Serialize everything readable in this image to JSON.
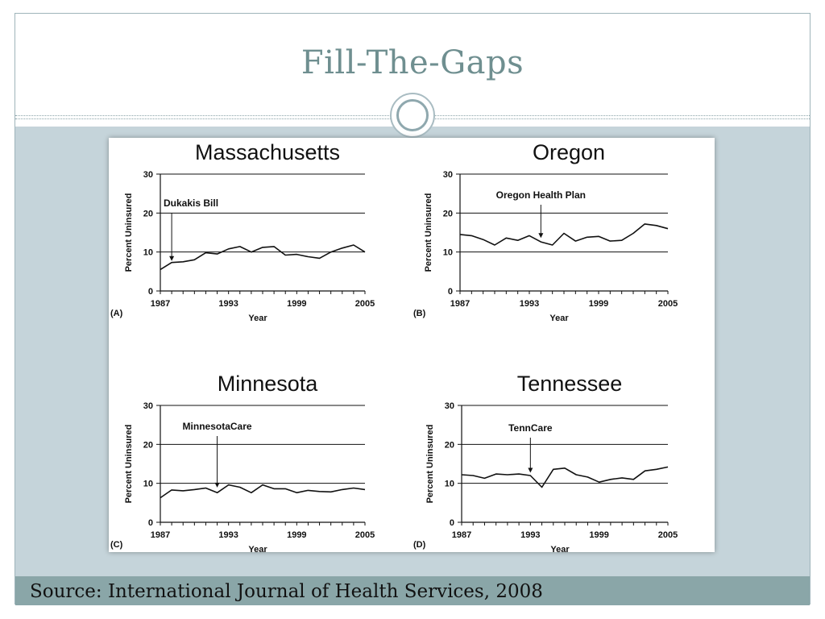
{
  "slide": {
    "title": "Fill-The-Gaps",
    "source": "Source: International Journal of Health Services, 2008"
  },
  "chart_data": [
    {
      "type": "line",
      "title": "Massachusetts",
      "panel_label": "(A)",
      "xlabel": "Year",
      "ylabel": "Percent Uninsured",
      "xlim": [
        1987,
        2005
      ],
      "ylim": [
        0,
        30
      ],
      "xticks": [
        "1987",
        "1993",
        "1999",
        "2005"
      ],
      "yticks": [
        "0",
        "10",
        "20",
        "30"
      ],
      "grid": "horizontal at 10 and 20",
      "annotation": {
        "text": "Dukakis Bill",
        "x": 1988,
        "y": 7.3
      },
      "x": [
        1987,
        1988,
        1989,
        1990,
        1991,
        1992,
        1993,
        1994,
        1995,
        1996,
        1997,
        1998,
        1999,
        2000,
        2001,
        2002,
        2003,
        2004,
        2005
      ],
      "y": [
        5.5,
        7.3,
        7.5,
        8.0,
        9.8,
        9.5,
        10.8,
        11.4,
        10.0,
        11.2,
        11.4,
        9.2,
        9.4,
        8.8,
        8.4,
        10.0,
        11.0,
        11.8,
        10.0
      ]
    },
    {
      "type": "line",
      "title": "Oregon",
      "panel_label": "(B)",
      "xlabel": "Year",
      "ylabel": "Percent Uninsured",
      "xlim": [
        1987,
        2005
      ],
      "ylim": [
        0,
        30
      ],
      "xticks": [
        "1987",
        "1993",
        "1999",
        "2005"
      ],
      "yticks": [
        "0",
        "10",
        "20",
        "30"
      ],
      "grid": "horizontal at 10 and 20",
      "annotation": {
        "text": "Oregon Health Plan",
        "x": 1994,
        "y": 13.2
      },
      "x": [
        1987,
        1988,
        1989,
        1990,
        1991,
        1992,
        1993,
        1994,
        1995,
        1996,
        1997,
        1998,
        1999,
        2000,
        2001,
        2002,
        2003,
        2004,
        2005
      ],
      "y": [
        14.5,
        14.2,
        13.2,
        11.8,
        13.6,
        13.0,
        14.2,
        12.6,
        11.8,
        14.8,
        12.8,
        13.8,
        14.0,
        12.8,
        13.0,
        14.8,
        17.2,
        16.8,
        16.0
      ]
    },
    {
      "type": "line",
      "title": "Minnesota",
      "panel_label": "(C)",
      "xlabel": "Year",
      "ylabel": "Percent Uninsured",
      "xlim": [
        1987,
        2005
      ],
      "ylim": [
        0,
        30
      ],
      "xticks": [
        "1987",
        "1993",
        "1999",
        "2005"
      ],
      "yticks": [
        "0",
        "10",
        "20",
        "30"
      ],
      "grid": "horizontal at 10 and 20",
      "annotation": {
        "text": "MinnesotaCare",
        "x": 1992,
        "y": 8.5
      },
      "x": [
        1987,
        1988,
        1989,
        1990,
        1991,
        1992,
        1993,
        1994,
        1995,
        1996,
        1997,
        1998,
        1999,
        2000,
        2001,
        2002,
        2003,
        2004,
        2005
      ],
      "y": [
        6.3,
        8.3,
        8.1,
        8.4,
        8.8,
        7.6,
        9.6,
        9.0,
        7.6,
        9.6,
        8.6,
        8.6,
        7.6,
        8.2,
        7.9,
        7.8,
        8.4,
        8.8,
        8.4
      ]
    },
    {
      "type": "line",
      "title": "Tennessee",
      "panel_label": "(D)",
      "xlabel": "Year",
      "ylabel": "Percent Uninsured",
      "xlim": [
        1987,
        2005
      ],
      "ylim": [
        0,
        30
      ],
      "xticks": [
        "1987",
        "1993",
        "1999",
        "2005"
      ],
      "yticks": [
        "0",
        "10",
        "20",
        "30"
      ],
      "grid": "horizontal at 10 and 20",
      "annotation": {
        "text": "TennCare",
        "x": 1993,
        "y": 12.3
      },
      "x": [
        1987,
        1988,
        1989,
        1990,
        1991,
        1992,
        1993,
        1994,
        1995,
        1996,
        1997,
        1998,
        1999,
        2000,
        2001,
        2002,
        2003,
        2004,
        2005
      ],
      "y": [
        12.2,
        12.0,
        11.3,
        12.4,
        12.2,
        12.4,
        12.0,
        9.0,
        13.6,
        13.9,
        12.2,
        11.6,
        10.3,
        11.0,
        11.4,
        11.0,
        13.2,
        13.6,
        14.2
      ]
    }
  ],
  "colors": {
    "title": "#6f8f90",
    "band": "#c5d4da",
    "footer": "#8aa6a8",
    "line": "#111111"
  }
}
